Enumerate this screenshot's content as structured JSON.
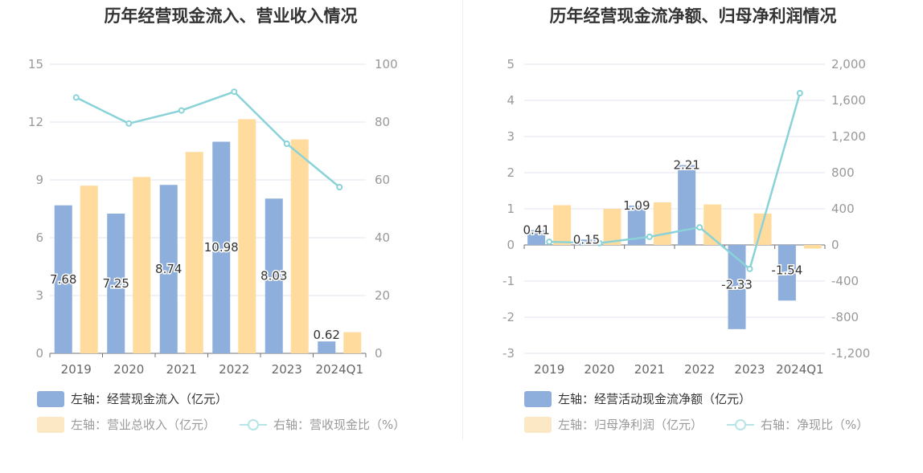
{
  "colors": {
    "bar_primary": "#8eaedb",
    "bar_secondary": "#ffdb9e",
    "line": "#89d3d8",
    "legend_active_text": "#333333",
    "legend_muted_text": "#999999",
    "secondary_legend_swatch": "#fde8c5",
    "line_legend": "#b7e4e7"
  },
  "chart_data": [
    {
      "type": "bar",
      "title": "历年经营现金流入、营业收入情况",
      "categories": [
        "2019",
        "2020",
        "2021",
        "2022",
        "2023",
        "2024Q1"
      ],
      "left_axis": {
        "ticks": [
          "0",
          "3",
          "6",
          "9",
          "12",
          "15"
        ],
        "ylim": [
          0,
          15
        ]
      },
      "right_axis": {
        "ticks": [
          "0",
          "20",
          "40",
          "60",
          "80",
          "100"
        ],
        "ylim": [
          0,
          100
        ]
      },
      "series": [
        {
          "name": "左轴：经营现金流入（亿元）",
          "type": "bar",
          "axis": "left",
          "values": [
            7.68,
            7.25,
            8.74,
            10.98,
            8.03,
            0.62
          ],
          "labels": [
            "7.68",
            "7.25",
            "8.74",
            "10.98",
            "8.03",
            "0.62"
          ]
        },
        {
          "name": "左轴：营业总收入（亿元）",
          "type": "bar",
          "axis": "left",
          "values": [
            8.7,
            9.15,
            10.45,
            12.15,
            11.1,
            1.1
          ]
        },
        {
          "name": "右轴：营收现金比（%）",
          "type": "line",
          "axis": "right",
          "values": [
            88.5,
            79.5,
            84,
            90.5,
            72.5,
            57.5
          ]
        }
      ]
    },
    {
      "type": "bar",
      "title": "历年经营现金流净额、归母净利润情况",
      "categories": [
        "2019",
        "2020",
        "2021",
        "2022",
        "2023",
        "2024Q1"
      ],
      "left_axis": {
        "ticks": [
          "-3",
          "-2",
          "-1",
          "0",
          "1",
          "2",
          "3",
          "4",
          "5"
        ],
        "ylim": [
          -3,
          5
        ]
      },
      "right_axis": {
        "ticks": [
          "-1,200",
          "-800",
          "-400",
          "0",
          "400",
          "800",
          "1,200",
          "1,600",
          "2,000"
        ],
        "ylim": [
          -1200,
          2000
        ]
      },
      "series": [
        {
          "name": "左轴：经营活动现金流净额（亿元）",
          "type": "bar",
          "axis": "left",
          "values": [
            0.41,
            0.15,
            1.09,
            2.21,
            -2.33,
            -1.54
          ],
          "labels": [
            "0.41",
            "0.15",
            "1.09",
            "2.21",
            "-2.33",
            "-1.54"
          ]
        },
        {
          "name": "左轴：归母净利润（亿元）",
          "type": "bar",
          "axis": "left",
          "values": [
            1.1,
            1.0,
            1.18,
            1.12,
            0.87,
            -0.1
          ]
        },
        {
          "name": "右轴：净现比（%）",
          "type": "line",
          "axis": "right",
          "values": [
            35,
            20,
            90,
            195,
            -265,
            1680
          ]
        }
      ]
    }
  ]
}
